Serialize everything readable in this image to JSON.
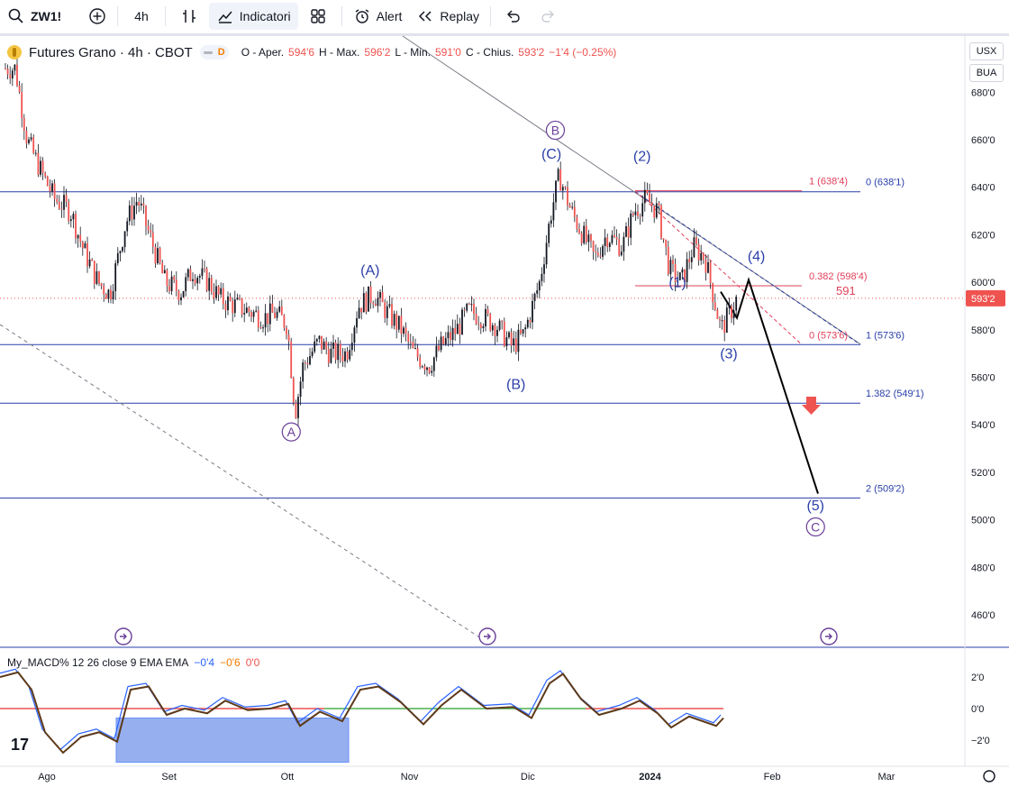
{
  "toolbar": {
    "symbol": "ZW1!",
    "interval": "4h",
    "indicators_label": "Indicatori",
    "alert_label": "Alert",
    "replay_label": "Replay"
  },
  "legend": {
    "title": "Futures Grano · 4h · CBOT",
    "badge": "D",
    "o_label": "O - Aper.",
    "o_value": "594'6",
    "h_label": "H - Max.",
    "h_value": "596'2",
    "l_label": "L - Min.",
    "l_value": "591'0",
    "c_label": "C - Chius.",
    "c_value": "593'2",
    "change": "−1'4 (−0.25%)"
  },
  "scale": {
    "currency": "USX",
    "unit": "BUA"
  },
  "macd_legend": {
    "name": "My_MACD% 12 26 close 9 EMA EMA",
    "v1": "−0'4",
    "v2": "−0'6",
    "v3": "0'0"
  },
  "colors": {
    "up": "#26a69a",
    "down": "#ef5350",
    "candle": "#131722",
    "wave": "#2a3fa8",
    "fib_red": "#e0405a",
    "fib_blue": "#2a3fa8",
    "macd_blue": "#2962ff",
    "macd_brown": "#5d3a1a",
    "zero_green": "#4caf50",
    "zero_red": "#ef5350",
    "box_fill": "#6b8ee8"
  },
  "chart_data": {
    "type": "candlestick",
    "title": "Futures Grano · 4h · CBOT",
    "ylim": [
      447,
      690
    ],
    "price_ticks": [
      "680'0",
      "660'0",
      "640'0",
      "620'0",
      "600'0",
      "580'0",
      "560'0",
      "540'0",
      "520'0",
      "500'0",
      "480'0",
      "460'0"
    ],
    "price_tick_values": [
      680,
      660,
      640,
      620,
      600,
      580,
      560,
      540,
      520,
      500,
      480,
      460
    ],
    "last_price_label": "593'2",
    "last_price": 593.25,
    "x_labels": [
      "Ago",
      "Set",
      "Ott",
      "Nov",
      "Dic",
      "2024",
      "Feb",
      "Mar"
    ],
    "x_label_dates": [
      "2023-08-01",
      "2023-09-01",
      "2023-10-01",
      "2023-11-01",
      "2023-12-01",
      "2024-01-01",
      "2024-02-01",
      "2024-03-01"
    ],
    "path_points": [
      [
        "2023-07-24",
        690
      ],
      [
        "2023-07-27",
        660
      ],
      [
        "2023-07-31",
        645
      ],
      [
        "2023-08-03",
        635
      ],
      [
        "2023-08-07",
        630
      ],
      [
        "2023-08-10",
        615
      ],
      [
        "2023-08-14",
        600
      ],
      [
        "2023-08-17",
        595
      ],
      [
        "2023-08-21",
        625
      ],
      [
        "2023-08-24",
        635
      ],
      [
        "2023-08-28",
        615
      ],
      [
        "2023-08-31",
        600
      ],
      [
        "2023-09-04",
        596
      ],
      [
        "2023-09-07",
        605
      ],
      [
        "2023-09-11",
        600
      ],
      [
        "2023-09-14",
        593
      ],
      [
        "2023-09-18",
        590
      ],
      [
        "2023-09-21",
        588
      ],
      [
        "2023-09-25",
        585
      ],
      [
        "2023-09-28",
        587
      ],
      [
        "2023-10-01",
        582
      ],
      [
        "2023-10-03",
        545
      ],
      [
        "2023-10-05",
        565
      ],
      [
        "2023-10-09",
        575
      ],
      [
        "2023-10-12",
        570
      ],
      [
        "2023-10-16",
        570
      ],
      [
        "2023-10-19",
        590
      ],
      [
        "2023-10-23",
        595
      ],
      [
        "2023-10-26",
        588
      ],
      [
        "2023-10-30",
        580
      ],
      [
        "2023-11-02",
        570
      ],
      [
        "2023-11-06",
        565
      ],
      [
        "2023-11-09",
        573
      ],
      [
        "2023-11-13",
        580
      ],
      [
        "2023-11-16",
        588
      ],
      [
        "2023-11-20",
        585
      ],
      [
        "2023-11-23",
        582
      ],
      [
        "2023-11-27",
        573
      ],
      [
        "2023-11-30",
        578
      ],
      [
        "2023-12-04",
        600
      ],
      [
        "2023-12-07",
        630
      ],
      [
        "2023-12-09",
        645
      ],
      [
        "2023-12-12",
        630
      ],
      [
        "2023-12-15",
        620
      ],
      [
        "2023-12-18",
        610
      ],
      [
        "2023-12-21",
        620
      ],
      [
        "2023-12-25",
        615
      ],
      [
        "2023-12-28",
        630
      ],
      [
        "2023-12-31",
        635
      ],
      [
        "2024-01-03",
        630
      ],
      [
        "2024-01-06",
        605
      ],
      [
        "2024-01-09",
        600
      ],
      [
        "2024-01-12",
        615
      ],
      [
        "2024-01-15",
        610
      ],
      [
        "2024-01-17",
        595
      ],
      [
        "2024-01-19",
        580
      ],
      [
        "2024-01-21",
        586
      ],
      [
        "2024-01-23",
        593
      ]
    ],
    "macd": {
      "ylim": [
        -3,
        3
      ],
      "ticks": [
        "2'0",
        "0'0",
        "−2'0"
      ],
      "tick_values": [
        2,
        0,
        -2
      ]
    },
    "waves": [
      {
        "label": "(C)",
        "date": "2023-12-07",
        "price": 652
      },
      {
        "label": "(2)",
        "date": "2023-12-30",
        "price": 651
      },
      {
        "label": "(A)",
        "date": "2023-10-22",
        "price": 603
      },
      {
        "label": "(1)",
        "date": "2024-01-08",
        "price": 598
      },
      {
        "label": "(4)",
        "date": "2024-01-28",
        "price": 609
      },
      {
        "label": "(B)",
        "date": "2023-11-28",
        "price": 555
      },
      {
        "label": "(3)",
        "date": "2024-01-21",
        "price": 568
      },
      {
        "label": "(5)",
        "date": "2024-02-12",
        "price": 504
      }
    ],
    "circled_waves": [
      {
        "label": "B",
        "date": "2023-12-08",
        "price": 664
      },
      {
        "label": "A",
        "date": "2023-10-02",
        "price": 537
      },
      {
        "label": "C",
        "date": "2024-02-12",
        "price": 497
      }
    ],
    "fib_labels": [
      {
        "text": "1 (638'4)",
        "color": "red"
      },
      {
        "text": "0 (638'1)",
        "color": "blue"
      },
      {
        "text": "0.382 (598'4)",
        "color": "red"
      },
      {
        "text": "591",
        "color": "red"
      },
      {
        "text": "0 (573'6)",
        "color": "red"
      },
      {
        "text": "1 (573'6)",
        "color": "blue"
      },
      {
        "text": "1.382 (549'1)",
        "color": "blue"
      },
      {
        "text": "2 (509'2)",
        "color": "blue"
      }
    ]
  }
}
